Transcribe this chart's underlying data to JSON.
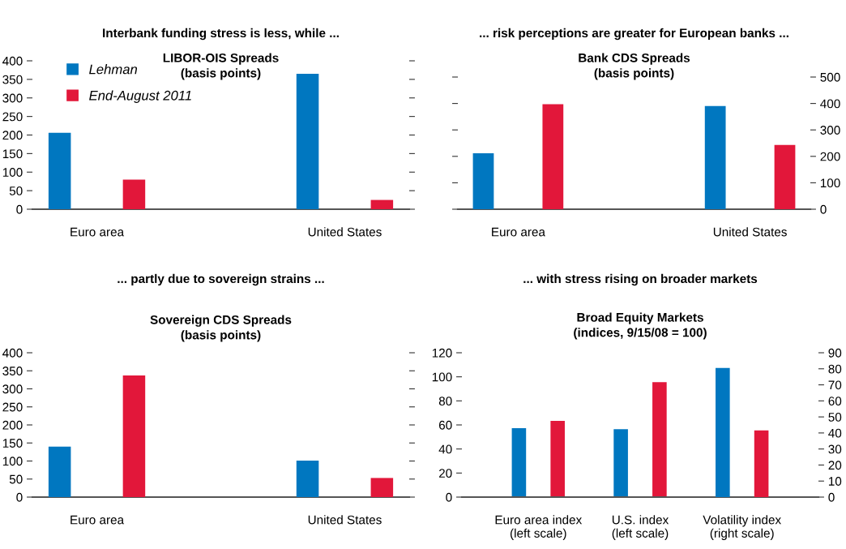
{
  "chart_data": [
    {
      "type": "bar",
      "title": "Interbank funding stress is less, while ...",
      "subtitle": "LIBOR-OIS Spreads\n(basis points)",
      "categories": [
        "Euro area",
        "United States"
      ],
      "series": [
        {
          "name": "Lehman",
          "color": "#0077c0",
          "values": [
            206,
            365
          ]
        },
        {
          "name": "End-August 2011",
          "color": "#e2173a",
          "values": [
            80,
            25
          ]
        }
      ],
      "ylim": [
        0,
        400
      ],
      "yticks": [
        0,
        50,
        100,
        150,
        200,
        250,
        300,
        350,
        400
      ],
      "legend": "top left",
      "grid": false
    },
    {
      "type": "bar",
      "title": "... risk perceptions are greater for European banks ...",
      "subtitle": "Bank CDS Spreads\n(basis points)",
      "categories": [
        "Euro area",
        "United States"
      ],
      "series": [
        {
          "color": "#0077c0",
          "values": [
            212,
            390
          ],
          "axis": "y2"
        },
        {
          "color": "#e2173a",
          "values": [
            397,
            243
          ],
          "axis": "y2"
        }
      ],
      "y2lim": [
        0,
        500
      ],
      "y2ticks": [
        0,
        100,
        200,
        300,
        400,
        500
      ],
      "tick_labels": "y2",
      "legend": false,
      "grid": false
    },
    {
      "type": "bar",
      "title": "... partly due to sovereign strains ...",
      "subtitle": "Sovereign CDS Spreads\n(basis points)",
      "categories": [
        "Euro area",
        "United States"
      ],
      "series": [
        {
          "color": "#0077c0",
          "values": [
            140,
            101
          ]
        },
        {
          "color": "#e2173a",
          "values": [
            337,
            53
          ]
        }
      ],
      "ylim": [
        0,
        400
      ],
      "yticks": [
        0,
        50,
        100,
        150,
        200,
        250,
        300,
        350,
        400
      ],
      "legend": false,
      "grid": false
    },
    {
      "type": "bar",
      "title": "... with stress rising on broader markets",
      "subtitle": "Broad Equity Markets\n(indices, 9/15/08 = 100)",
      "categories": [
        "Euro area index\n(left scale)",
        "U.S. index\n(left scale)",
        "Volatility index\n(right scale)"
      ],
      "series": [
        {
          "color": "#0077c0",
          "values": [
            57.3,
            56.4,
            null
          ]
        },
        {
          "color": "#e2173a",
          "values": [
            63.4,
            95.5,
            null
          ]
        },
        {
          "color": "#0077c0",
          "values": [
            null,
            null,
            80.5
          ],
          "axis": "y2"
        },
        {
          "color": "#e2173a",
          "values": [
            null,
            null,
            41.6
          ],
          "axis": "y2"
        }
      ],
      "ylim": [
        0,
        120
      ],
      "yticks": [
        0,
        20,
        40,
        60,
        80,
        100,
        120
      ],
      "y2lim": [
        0,
        90
      ],
      "y2ticks": [
        0,
        10,
        20,
        30,
        40,
        50,
        60,
        70,
        80,
        90
      ],
      "legend": false,
      "grid": false
    }
  ]
}
